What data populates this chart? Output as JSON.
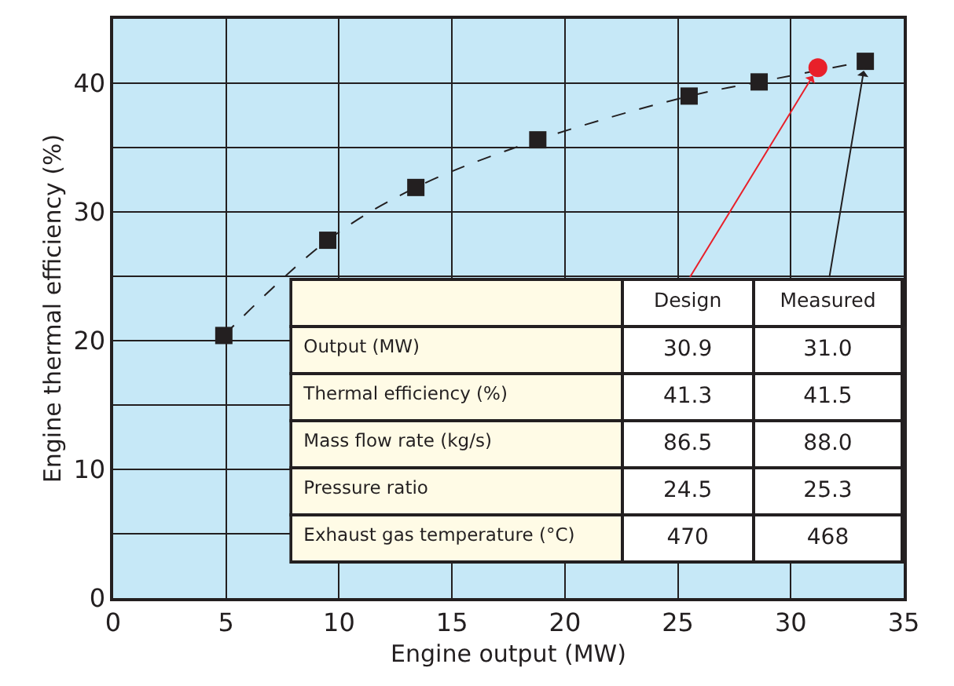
{
  "chart_data": {
    "type": "line",
    "xlabel": "Engine output (MW)",
    "ylabel": "Engine thermal efficiency (%)",
    "xlim": [
      0,
      35
    ],
    "xticks": [
      0,
      5,
      10,
      15,
      20,
      25,
      30,
      35
    ],
    "ylim": [
      0,
      45
    ],
    "yticks": [
      0,
      {
        "value": 5,
        "label": null
      },
      10,
      {
        "value": 15,
        "label": null
      },
      20,
      {
        "value": 25,
        "label": null
      },
      30,
      {
        "value": 35,
        "label": null
      },
      40,
      {
        "value": 45,
        "label": null
      }
    ],
    "grid": true,
    "series": [
      {
        "marker": "square",
        "line_style": "dashed",
        "color": "#231f20",
        "x": [
          4.9,
          9.5,
          13.4,
          18.8,
          25.5,
          28.6,
          33.3
        ],
        "values": [
          20.4,
          27.8,
          31.9,
          35.6,
          39.0,
          40.1,
          41.7
        ]
      },
      {
        "type": "scatter",
        "marker": "circle",
        "color": "#e8202a",
        "x": [
          31.2
        ],
        "values": [
          41.2
        ]
      }
    ],
    "annotations": [
      {
        "text": "Design",
        "x": 31.2,
        "y": 41.2
      },
      {
        "text": "Measured",
        "x": 33.3,
        "y": 41.7
      },
      "Output (MW)",
      "30.9",
      "31.0",
      "Thermal efficiency (%)",
      "41.3",
      "41.5",
      "Mass flow rate (kg/s)",
      "86.5",
      "88.0",
      "Pressure ratio",
      "24.5",
      "25.3",
      "Exhaust gas temperature (°C)",
      "470",
      "468"
    ]
  }
}
